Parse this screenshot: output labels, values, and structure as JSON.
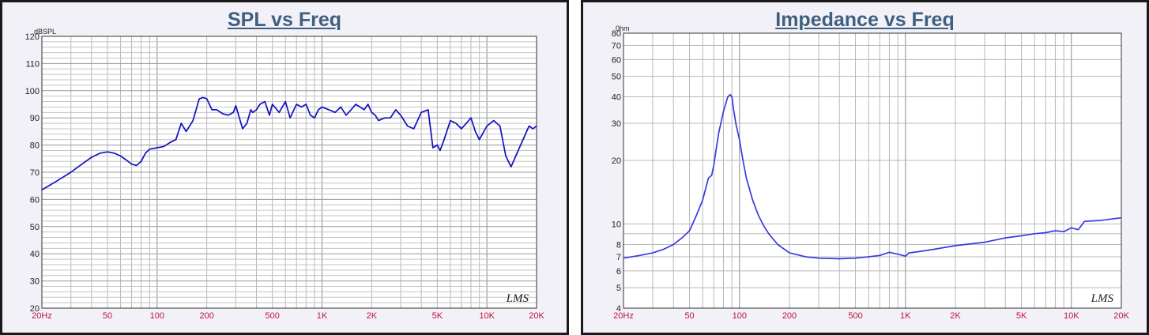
{
  "chart_data": [
    {
      "type": "line",
      "title": "SPL vs Freq",
      "unit_label": "dBSPL",
      "x_scale": "log",
      "xlim": [
        20,
        20000
      ],
      "ylim": [
        20,
        120
      ],
      "y_ticks": [
        20,
        30,
        40,
        50,
        60,
        70,
        80,
        90,
        100,
        110,
        120
      ],
      "x_tick_values": [
        20,
        50,
        100,
        200,
        500,
        1000,
        2000,
        5000,
        10000,
        20000
      ],
      "x_tick_labels": [
        "20Hz",
        "50",
        "100",
        "200",
        "500",
        "1K",
        "2K",
        "5K",
        "10K",
        "20K"
      ],
      "grid": true,
      "logo_text": "LMS",
      "line_color": "#1010c0",
      "series": [
        {
          "x": [
            20,
            25,
            30,
            35,
            40,
            45,
            50,
            55,
            60,
            65,
            70,
            75,
            80,
            85,
            90,
            100,
            110,
            120,
            130,
            140,
            150,
            165,
            180,
            190,
            200,
            215,
            230,
            250,
            270,
            290,
            300,
            330,
            350,
            370,
            380,
            400,
            420,
            450,
            480,
            500,
            550,
            600,
            640,
            700,
            750,
            800,
            850,
            900,
            950,
            1000,
            1100,
            1200,
            1300,
            1400,
            1500,
            1600,
            1700,
            1800,
            1900,
            2000,
            2100,
            2200,
            2400,
            2600,
            2800,
            3000,
            3300,
            3600,
            4000,
            4400,
            4700,
            5000,
            5200,
            5500,
            6000,
            6500,
            7000,
            7500,
            8000,
            8500,
            9000,
            10000,
            11000,
            12000,
            13000,
            14000,
            16000,
            18000,
            19000,
            20000
          ],
          "y": [
            63.5,
            67,
            70,
            73,
            75.5,
            77,
            77.5,
            77,
            76,
            74.5,
            73,
            72.5,
            74,
            77,
            78.5,
            79,
            79.5,
            81,
            82,
            88,
            85,
            89,
            97,
            97.5,
            97,
            93,
            93,
            91.5,
            91,
            92,
            94.5,
            86,
            88,
            93,
            92,
            93,
            95,
            96,
            91,
            95,
            92,
            96,
            90,
            95,
            94,
            95,
            91,
            90,
            93,
            94,
            93,
            92,
            94,
            91,
            93,
            95,
            94,
            93,
            95,
            92,
            91,
            89,
            90,
            90,
            93,
            91,
            87,
            86,
            92,
            93,
            79,
            80,
            78,
            82,
            89,
            88,
            86,
            88,
            90,
            85,
            82,
            87,
            89,
            87,
            76,
            72,
            80,
            87,
            86,
            87
          ]
        }
      ]
    },
    {
      "type": "line",
      "title": "Impedance vs Freq",
      "unit_label": "0hm",
      "x_scale": "log",
      "y_scale": "log",
      "xlim": [
        20,
        20000
      ],
      "ylim": [
        4,
        80
      ],
      "y_ticks": [
        4,
        5,
        6,
        7,
        8,
        9,
        10,
        20,
        30,
        40,
        50,
        60,
        70,
        80
      ],
      "y_tick_labels": [
        "4",
        "5",
        "6",
        "7",
        "8",
        "",
        "10",
        "20",
        "30",
        "40",
        "50",
        "60",
        "70",
        "80"
      ],
      "x_tick_values": [
        20,
        50,
        100,
        200,
        500,
        1000,
        2000,
        5000,
        10000,
        20000
      ],
      "x_tick_labels": [
        "20Hz",
        "50",
        "100",
        "200",
        "500",
        "1K",
        "2K",
        "5K",
        "10K",
        "20K"
      ],
      "grid": true,
      "logo_text": "LMS",
      "line_color": "#3a3ae0",
      "series": [
        {
          "x": [
            20,
            25,
            30,
            35,
            40,
            45,
            50,
            55,
            60,
            65,
            68,
            70,
            72,
            75,
            80,
            85,
            88,
            90,
            92,
            95,
            100,
            105,
            110,
            120,
            130,
            140,
            150,
            170,
            200,
            250,
            300,
            400,
            500,
            600,
            700,
            800,
            900,
            1000,
            1050,
            1200,
            1500,
            2000,
            3000,
            4000,
            5000,
            6000,
            7000,
            8000,
            9000,
            10000,
            11000,
            12000,
            15000,
            18000,
            20000
          ],
          "y": [
            6.9,
            7.1,
            7.3,
            7.6,
            8.0,
            8.6,
            9.3,
            11,
            13,
            16.5,
            17,
            19,
            22,
            27,
            34,
            40,
            41,
            40,
            35,
            30,
            25,
            20,
            16.5,
            13,
            11,
            9.8,
            9.0,
            8.0,
            7.3,
            7.0,
            6.9,
            6.85,
            6.9,
            7.0,
            7.1,
            7.35,
            7.2,
            7.05,
            7.3,
            7.4,
            7.6,
            7.9,
            8.2,
            8.6,
            8.8,
            9.0,
            9.1,
            9.3,
            9.2,
            9.6,
            9.4,
            10.3,
            10.4,
            10.6,
            10.7
          ]
        }
      ]
    }
  ]
}
